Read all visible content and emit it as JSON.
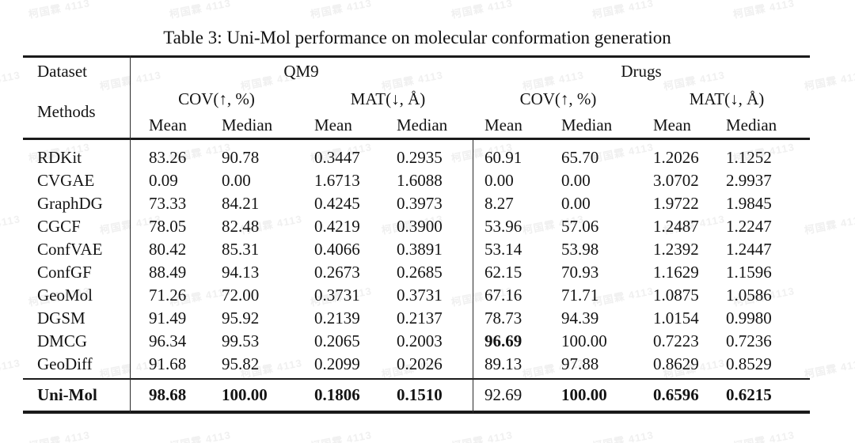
{
  "watermark": {
    "text": "柯国霖 4113"
  },
  "caption": "Table 3: Uni-Mol performance on molecular conformation generation",
  "table": {
    "header": {
      "dataset_label": "Dataset",
      "methods_label": "Methods",
      "groups": [
        {
          "name": "QM9",
          "metrics": [
            "COV(↑, %)",
            "MAT(↓, Å)"
          ]
        },
        {
          "name": "Drugs",
          "metrics": [
            "COV(↑, %)",
            "MAT(↓, Å)"
          ]
        }
      ],
      "stat_headers": [
        "Mean",
        "Median",
        "Mean",
        "Median",
        "Mean",
        "Median",
        "Mean",
        "Median"
      ]
    },
    "rows": [
      {
        "method": "RDKit",
        "values": [
          "83.26",
          "90.78",
          "0.3447",
          "0.2935",
          "60.91",
          "65.70",
          "1.2026",
          "1.1252"
        ],
        "bold_cols": []
      },
      {
        "method": "CVGAE",
        "values": [
          "0.09",
          "0.00",
          "1.6713",
          "1.6088",
          "0.00",
          "0.00",
          "3.0702",
          "2.9937"
        ],
        "bold_cols": []
      },
      {
        "method": "GraphDG",
        "values": [
          "73.33",
          "84.21",
          "0.4245",
          "0.3973",
          "8.27",
          "0.00",
          "1.9722",
          "1.9845"
        ],
        "bold_cols": []
      },
      {
        "method": "CGCF",
        "values": [
          "78.05",
          "82.48",
          "0.4219",
          "0.3900",
          "53.96",
          "57.06",
          "1.2487",
          "1.2247"
        ],
        "bold_cols": []
      },
      {
        "method": "ConfVAE",
        "values": [
          "80.42",
          "85.31",
          "0.4066",
          "0.3891",
          "53.14",
          "53.98",
          "1.2392",
          "1.2447"
        ],
        "bold_cols": []
      },
      {
        "method": "ConfGF",
        "values": [
          "88.49",
          "94.13",
          "0.2673",
          "0.2685",
          "62.15",
          "70.93",
          "1.1629",
          "1.1596"
        ],
        "bold_cols": []
      },
      {
        "method": "GeoMol",
        "values": [
          "71.26",
          "72.00",
          "0.3731",
          "0.3731",
          "67.16",
          "71.71",
          "1.0875",
          "1.0586"
        ],
        "bold_cols": []
      },
      {
        "method": "DGSM",
        "values": [
          "91.49",
          "95.92",
          "0.2139",
          "0.2137",
          "78.73",
          "94.39",
          "1.0154",
          "0.9980"
        ],
        "bold_cols": []
      },
      {
        "method": "DMCG",
        "values": [
          "96.34",
          "99.53",
          "0.2065",
          "0.2003",
          "96.69",
          "100.00",
          "0.7223",
          "0.7236"
        ],
        "bold_cols": [
          4
        ]
      },
      {
        "method": "GeoDiff",
        "values": [
          "91.68",
          "95.82",
          "0.2099",
          "0.2026",
          "89.13",
          "97.88",
          "0.8629",
          "0.8529"
        ],
        "bold_cols": []
      }
    ],
    "summary_row": {
      "method": "Uni-Mol",
      "method_bold": true,
      "values": [
        "98.68",
        "100.00",
        "0.1806",
        "0.1510",
        "92.69",
        "100.00",
        "0.6596",
        "0.6215"
      ],
      "bold_cols": [
        0,
        1,
        2,
        3,
        5,
        6,
        7
      ]
    }
  },
  "colors": {
    "text": "#141414",
    "rule": "#1a1a1a",
    "watermark": "#f0f0f0"
  }
}
